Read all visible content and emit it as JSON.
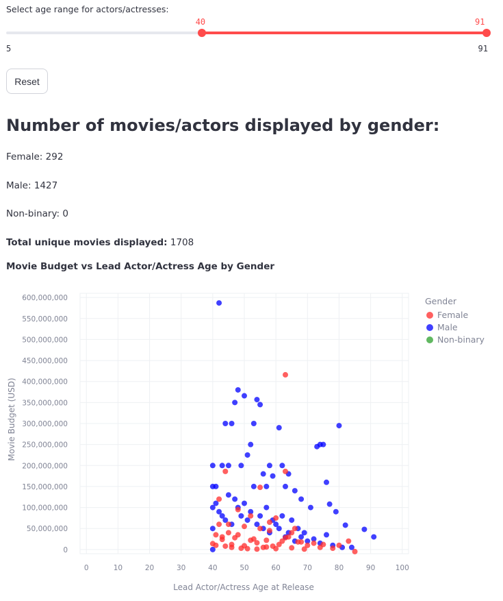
{
  "slider": {
    "label": "Select age range for actors/actresses:",
    "min": 5,
    "max": 91,
    "low": 40,
    "high": 91,
    "min_label": "5",
    "max_label": "91",
    "low_label": "40",
    "high_label": "91",
    "accent": "#ff4b4b"
  },
  "reset_label": "Reset",
  "heading": "Number of movies/actors displayed by gender:",
  "stats": {
    "female": "Female: 292",
    "male": "Male: 1427",
    "nonbinary": "Non-binary: 0",
    "total_label": "Total unique movies displayed:",
    "total_value": " 1708"
  },
  "chart_title": "Movie Budget vs Lead Actor/Actress Age by Gender",
  "chart_data": {
    "type": "scatter",
    "xlabel": "Lead Actor/Actress Age at Release",
    "ylabel": "Movie Budget (USD)",
    "xlim": [
      -2,
      102
    ],
    "ylim": [
      -10000000,
      610000000
    ],
    "xticks": [
      0,
      10,
      20,
      30,
      40,
      50,
      60,
      70,
      80,
      90,
      100
    ],
    "yticks": [
      0,
      50000000,
      100000000,
      150000000,
      200000000,
      250000000,
      300000000,
      350000000,
      400000000,
      450000000,
      500000000,
      550000000,
      600000000
    ],
    "ytick_labels": [
      "0",
      "50,000,000",
      "100,000,000",
      "150,000,000",
      "200,000,000",
      "250,000,000",
      "300,000,000",
      "350,000,000",
      "400,000,000",
      "450,000,000",
      "500,000,000",
      "550,000,000",
      "600,000,000"
    ],
    "grid": true,
    "legend_title": "Gender",
    "legend_position": "right",
    "series": [
      {
        "name": "Female",
        "color": "#ff2b2b",
        "x": [
          63,
          44,
          55,
          63,
          42,
          48,
          52,
          60,
          45,
          50,
          55,
          58,
          65,
          41,
          43,
          47,
          53,
          57,
          62,
          68,
          72,
          75,
          80,
          83,
          85,
          41,
          44,
          46,
          49,
          51,
          54,
          56,
          59,
          61,
          64,
          66,
          70,
          42,
          45,
          48,
          52,
          58,
          63,
          67,
          74,
          78,
          40,
          43,
          46,
          50,
          54,
          57,
          60,
          65,
          69
        ],
        "y": [
          416000000,
          186000000,
          148000000,
          186000000,
          120000000,
          95000000,
          80000000,
          75000000,
          60000000,
          55000000,
          50000000,
          45000000,
          40000000,
          35000000,
          30000000,
          28000000,
          25000000,
          22000000,
          20000000,
          18000000,
          15000000,
          12000000,
          10000000,
          20000000,
          -5000000,
          10000000,
          8000000,
          5000000,
          3000000,
          2000000,
          1000000,
          5000000,
          8000000,
          12000000,
          30000000,
          50000000,
          10000000,
          60000000,
          40000000,
          35000000,
          22000000,
          65000000,
          28000000,
          18000000,
          5000000,
          3000000,
          14000000,
          24000000,
          12000000,
          9000000,
          16000000,
          6000000,
          2000000,
          4000000,
          1000000
        ]
      },
      {
        "name": "Male",
        "color": "#0000ff",
        "x": [
          42,
          50,
          48,
          54,
          47,
          55,
          44,
          46,
          53,
          61,
          80,
          73,
          74,
          75,
          64,
          52,
          62,
          58,
          51,
          45,
          49,
          56,
          41,
          43,
          57,
          59,
          63,
          66,
          68,
          71,
          76,
          77,
          79,
          82,
          88,
          91,
          40,
          40,
          40,
          40,
          40,
          41,
          42,
          43,
          44,
          45,
          46,
          47,
          48,
          49,
          50,
          51,
          52,
          53,
          54,
          55,
          56,
          57,
          58,
          59,
          60,
          61,
          62,
          63,
          64,
          65,
          66,
          67,
          68,
          69,
          70,
          72,
          74,
          76,
          78,
          81,
          84
        ],
        "y": [
          587000000,
          366000000,
          380000000,
          357000000,
          350000000,
          345000000,
          300000000,
          300000000,
          300000000,
          290000000,
          295000000,
          245000000,
          250000000,
          250000000,
          180000000,
          250000000,
          200000000,
          200000000,
          225000000,
          200000000,
          200000000,
          180000000,
          150000000,
          200000000,
          150000000,
          175000000,
          150000000,
          140000000,
          120000000,
          100000000,
          160000000,
          108000000,
          90000000,
          58000000,
          48000000,
          30000000,
          200000000,
          150000000,
          100000000,
          50000000,
          0,
          110000000,
          90000000,
          80000000,
          70000000,
          130000000,
          60000000,
          120000000,
          100000000,
          80000000,
          110000000,
          70000000,
          90000000,
          150000000,
          60000000,
          80000000,
          50000000,
          100000000,
          40000000,
          70000000,
          60000000,
          50000000,
          80000000,
          30000000,
          40000000,
          70000000,
          20000000,
          50000000,
          30000000,
          40000000,
          20000000,
          25000000,
          15000000,
          35000000,
          10000000,
          5000000,
          5000000
        ]
      },
      {
        "name": "Non-binary",
        "color": "#2ca02c",
        "x": [],
        "y": []
      }
    ]
  }
}
